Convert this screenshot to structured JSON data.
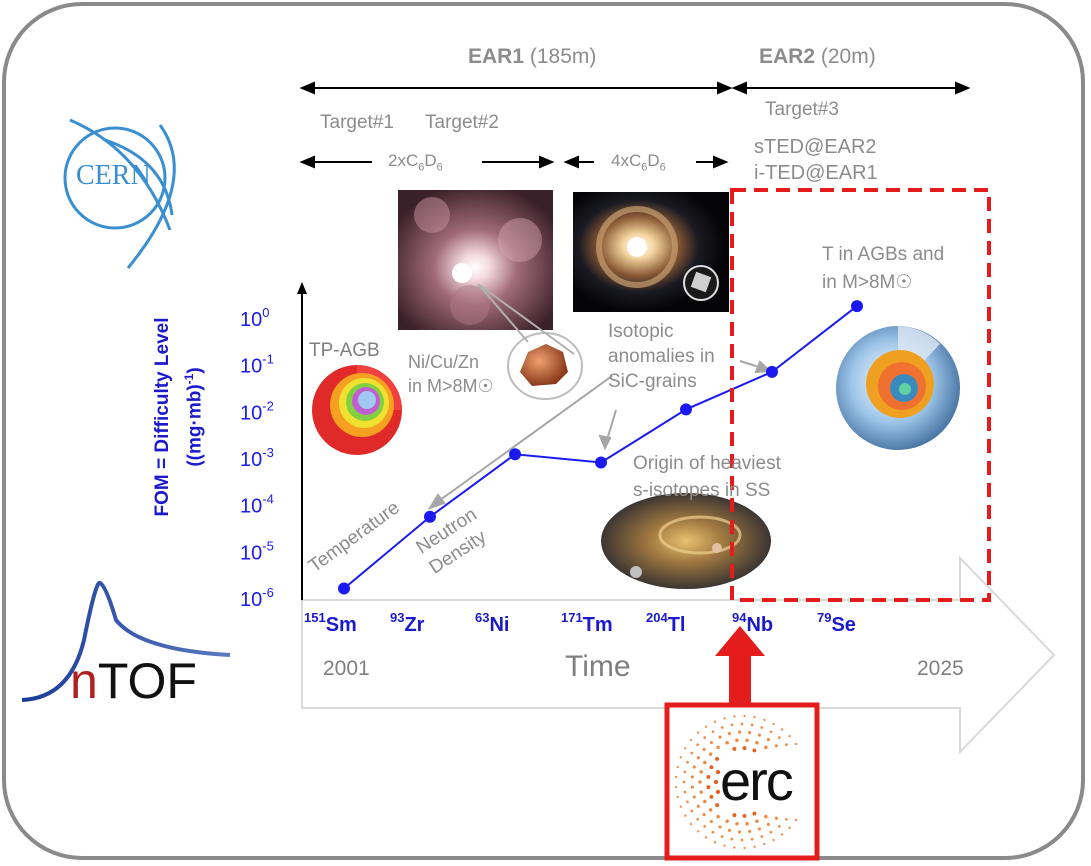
{
  "header": {
    "ear1_name": "EAR1",
    "ear1_dist": " (185m)",
    "ear2_name": "EAR2",
    "ear2_dist": " (20m)",
    "target1": "Target#1",
    "target2": "Target#2",
    "target3": "Target#3",
    "det1_prefix": "2xC",
    "det1_sub1": "6",
    "det1_mid": "D",
    "det1_sub2": "6",
    "det2_prefix": "4xC",
    "det2_sub1": "6",
    "det2_mid": "D",
    "det2_sub2": "6",
    "sted": "sTED@EAR2",
    "ited": "i-TED@EAR1"
  },
  "logos": {
    "cern": "CERN",
    "ntof": "nTOF",
    "erc": "erc"
  },
  "annotations": {
    "tpagb": "TP-AGB",
    "nicuzn_l1": "Ni/Cu/Zn",
    "nicuzn_l2": "in M>8M☉",
    "isotopic_l1": "Isotopic",
    "isotopic_l2": "anomalies in",
    "isotopic_l3": "SiC-grains",
    "origin_l1": "Origin of heaviest",
    "origin_l2": "s-isotopes in SS",
    "tagb_l1": "T in AGBs and",
    "tagb_l2": "in M>8M☉",
    "temperature": "Temperature",
    "neutron_l1": "Neutron",
    "neutron_l2": "Density"
  },
  "timeline": {
    "start": "2001",
    "label": "Time",
    "end": "2025"
  },
  "colors": {
    "series": "#1a1af0",
    "accent_red": "#e51c1c",
    "grey": "#8c8c8c"
  },
  "chart_data": {
    "type": "line",
    "ylabel": "FOM = Difficulty Level ((mg·mb)⁻¹)",
    "yscale": "log",
    "ylim": [
      1e-06,
      1
    ],
    "yticks": [
      {
        "value": 1,
        "base": "10",
        "exp": "0"
      },
      {
        "value": 0.1,
        "base": "10",
        "exp": "-1"
      },
      {
        "value": 0.01,
        "base": "10",
        "exp": "-2"
      },
      {
        "value": 0.001,
        "base": "10",
        "exp": "-3"
      },
      {
        "value": 0.0001,
        "base": "10",
        "exp": "-4"
      },
      {
        "value": 1e-05,
        "base": "10",
        "exp": "-5"
      },
      {
        "value": 1e-06,
        "base": "10",
        "exp": "-6"
      }
    ],
    "categories": [
      {
        "mass": "151",
        "el": "Sm"
      },
      {
        "mass": "93",
        "el": "Zr"
      },
      {
        "mass": "63",
        "el": "Ni"
      },
      {
        "mass": "171",
        "el": "Tm"
      },
      {
        "mass": "204",
        "el": "Tl"
      },
      {
        "mass": "94",
        "el": "Nb"
      },
      {
        "mass": "79",
        "el": "Se"
      }
    ],
    "values": [
      1.6e-06,
      5.5e-05,
      0.0012,
      0.0008,
      0.011,
      0.07,
      1.8
    ]
  }
}
